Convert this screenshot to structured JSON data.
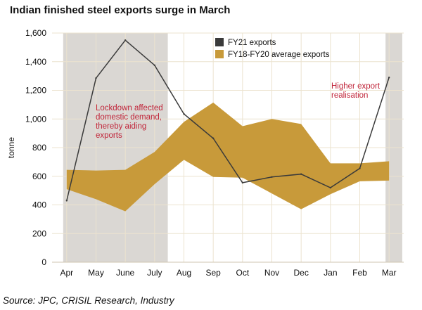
{
  "chart_data": {
    "type": "area",
    "title": "Indian finished steel exports surge in March",
    "ylabel": "tonne",
    "xlabel": "",
    "ylim": [
      0,
      1600
    ],
    "yticks": [
      0,
      200,
      400,
      600,
      800,
      1000,
      1200,
      1400,
      1600
    ],
    "y_tick_labels": [
      "0",
      "200",
      "400",
      "600",
      "800",
      "1,000",
      "1,200",
      "1,400",
      "1,600"
    ],
    "categories": [
      "Apr",
      "May",
      "June",
      "July",
      "Aug",
      "Sep",
      "Oct",
      "Nov",
      "Dec",
      "Jan",
      "Feb",
      "Mar"
    ],
    "grid": "vertical and horizontal",
    "legend_position": "top-right",
    "series": [
      {
        "name": "FY21 exports",
        "kind": "line",
        "color": "#3a3a3a",
        "values": [
          430,
          1285,
          1550,
          1375,
          1035,
          865,
          555,
          595,
          615,
          520,
          655,
          1290
        ]
      },
      {
        "name": "FY18-FY20 average exports",
        "kind": "band",
        "color": "#c89a3a",
        "upper": [
          645,
          640,
          645,
          770,
          980,
          1115,
          950,
          1000,
          965,
          690,
          690,
          705
        ],
        "lower": [
          510,
          440,
          355,
          545,
          715,
          595,
          590,
          480,
          370,
          475,
          565,
          570
        ]
      }
    ],
    "shaded_regions": [
      {
        "from": "Apr",
        "to": "July",
        "color": "#dad7d3"
      },
      {
        "from": "Mar",
        "to": "Mar",
        "color": "#dad7d3"
      }
    ],
    "annotations": [
      {
        "text": [
          "Lockdown affected",
          "domestic demand,",
          "thereby aiding",
          "exports"
        ],
        "near": "May",
        "color": "#c0253a"
      },
      {
        "text": [
          "Higher export",
          "realisation"
        ],
        "near": "Mar",
        "color": "#c0253a"
      }
    ],
    "source": "Source: JPC, CRISIL Research, Industry"
  }
}
